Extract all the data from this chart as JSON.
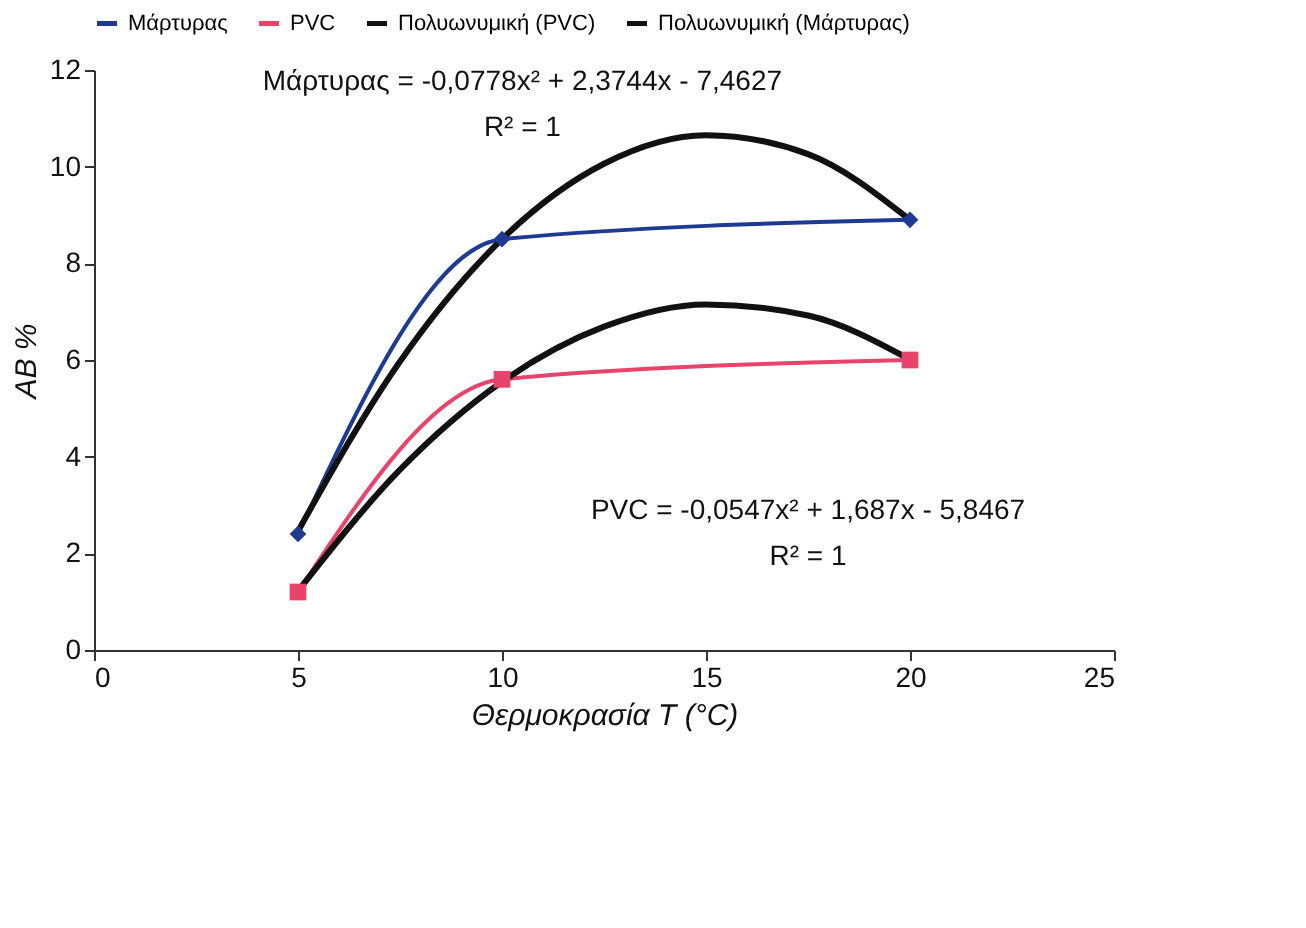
{
  "chart_data": {
    "type": "line",
    "xlabel": "Θερμοκρασία T (°C)",
    "ylabel": "AB %",
    "x": [
      5,
      10,
      20
    ],
    "series": [
      {
        "name": "Μάρτυρας",
        "color": "#1f3a93",
        "marker": "diamond",
        "values": [
          2.4,
          8.5,
          8.9
        ]
      },
      {
        "name": "PVC",
        "color": "#e8436b",
        "marker": "square",
        "values": [
          1.2,
          5.6,
          6.0
        ]
      },
      {
        "name": "Πολυωνυμική (PVC)",
        "color": "#111111",
        "marker": "none",
        "x": [
          5,
          7.5,
          10,
          12.5,
          15,
          17.5,
          20
        ],
        "values": [
          1.22,
          3.73,
          5.55,
          6.69,
          7.15,
          6.92,
          6.01
        ]
      },
      {
        "name": "Πολυωνυμική (Μάρτυρας)",
        "color": "#111111",
        "marker": "none",
        "x": [
          5,
          7.5,
          10,
          12.5,
          15,
          17.5,
          20
        ],
        "values": [
          2.46,
          5.97,
          8.5,
          10.06,
          10.65,
          10.26,
          8.9
        ]
      }
    ],
    "xlim": [
      0,
      25
    ],
    "xticks": [
      0,
      5,
      10,
      15,
      20,
      25
    ],
    "ylim": [
      0,
      12
    ],
    "yticks": [
      0,
      2,
      4,
      6,
      8,
      10,
      12
    ],
    "grid": false,
    "legend": "top",
    "annotations": [
      "Μάρτυρας = -0,0778x² + 2,3744x - 7,4627",
      "R² = 1",
      "PVC = -0,0547x² + 1,687x - 5,8467",
      "R² = 1"
    ]
  }
}
